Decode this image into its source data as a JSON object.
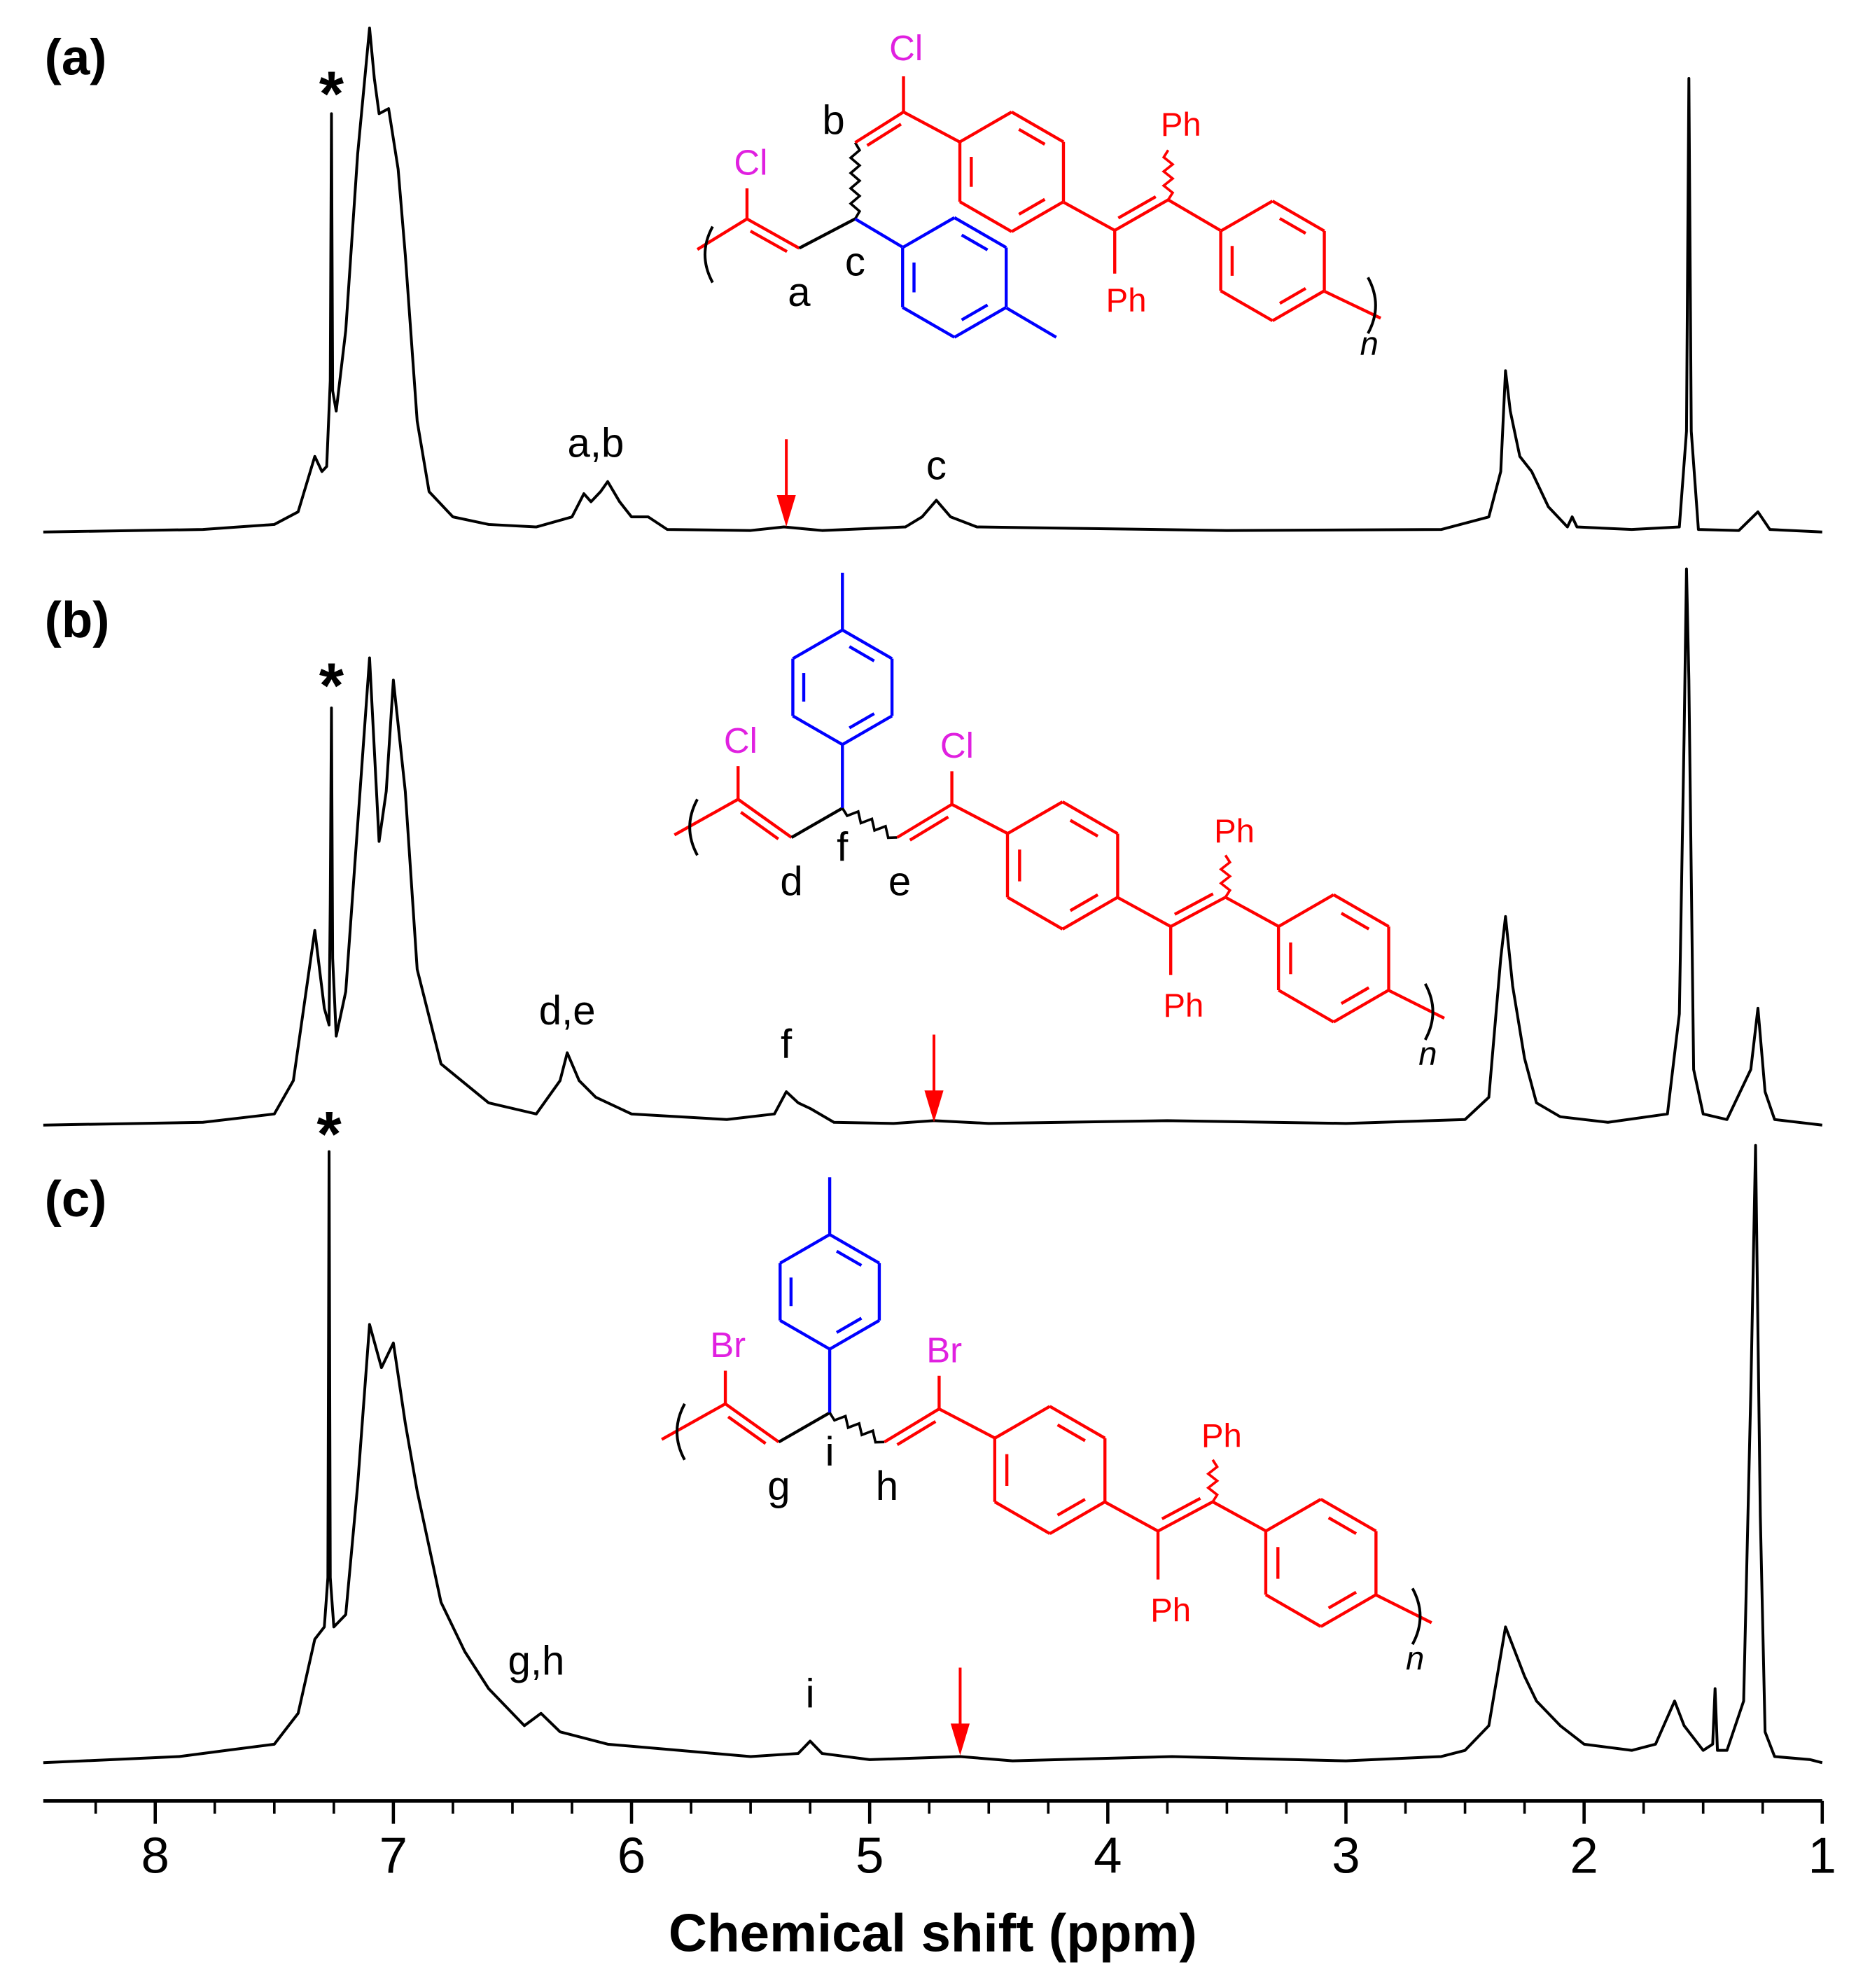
{
  "chart_data": [
    {
      "type": "line",
      "panel_label": "(a)",
      "color": "#000000",
      "xlim": [
        8.47,
        1
      ],
      "ylim": [
        0,
        100
      ],
      "x": [
        8.47,
        7.8,
        7.65,
        7.5,
        7.4,
        7.33,
        7.3,
        7.28,
        7.265,
        7.26,
        7.255,
        7.24,
        7.2,
        7.15,
        7.1,
        7.08,
        7.06,
        7.02,
        6.98,
        6.95,
        6.9,
        6.85,
        6.75,
        6.6,
        6.4,
        6.25,
        6.2,
        6.17,
        6.13,
        6.1,
        6.05,
        6.0,
        5.93,
        5.85,
        5.5,
        5.36,
        5.2,
        4.85,
        4.78,
        4.72,
        4.66,
        4.55,
        3.5,
        2.6,
        2.4,
        2.35,
        2.33,
        2.31,
        2.27,
        2.22,
        2.15,
        2.07,
        2.05,
        2.03,
        1.8,
        1.6,
        1.57,
        1.56,
        1.55,
        1.52,
        1.35,
        1.27,
        1.22,
        1.0
      ],
      "values": [
        0,
        0.5,
        1,
        1.5,
        4,
        15,
        12,
        13,
        30,
        83,
        28,
        24,
        40,
        75,
        100,
        90,
        83,
        84,
        72,
        55,
        22,
        8,
        3,
        1.5,
        1,
        3,
        7.6,
        6,
        8,
        10,
        6,
        3,
        3,
        0.5,
        0.3,
        1,
        0.3,
        1,
        3,
        6.3,
        3,
        1,
        0.3,
        0.5,
        3,
        12,
        32,
        24,
        15,
        12,
        5,
        1,
        3,
        1,
        0.5,
        1,
        20,
        90,
        20,
        0.5,
        0.3,
        4,
        0.5,
        0
      ],
      "annotations": [
        {
          "text": "*",
          "x": 7.26,
          "y": 88
        },
        {
          "text": "a,b",
          "x": 6.15,
          "y": 17
        },
        {
          "text": "c",
          "x": 4.72,
          "y": 12.6
        }
      ],
      "arrows": [
        {
          "x": 5.35,
          "y": 2
        }
      ],
      "structure_labels": [
        "Cl",
        "Cl",
        "Ph",
        "Ph",
        "a",
        "b",
        "c",
        "n"
      ]
    },
    {
      "type": "line",
      "panel_label": "(b)",
      "color": "#000000",
      "xlim": [
        8.47,
        1
      ],
      "ylim": [
        0,
        100
      ],
      "x": [
        8.47,
        7.8,
        7.6,
        7.5,
        7.42,
        7.38,
        7.33,
        7.29,
        7.27,
        7.265,
        7.26,
        7.255,
        7.24,
        7.2,
        7.15,
        7.1,
        7.06,
        7.03,
        7.0,
        6.95,
        6.9,
        6.8,
        6.6,
        6.4,
        6.3,
        6.27,
        6.22,
        6.15,
        6.0,
        5.6,
        5.4,
        5.35,
        5.3,
        5.25,
        5.15,
        4.9,
        4.73,
        4.5,
        3.75,
        3.0,
        2.5,
        2.4,
        2.35,
        2.33,
        2.3,
        2.25,
        2.2,
        2.1,
        1.9,
        1.65,
        1.6,
        1.58,
        1.57,
        1.56,
        1.54,
        1.5,
        1.4,
        1.3,
        1.27,
        1.24,
        1.2,
        1.0
      ],
      "values": [
        0,
        0.5,
        1.5,
        2,
        8,
        20,
        35,
        21,
        18,
        40,
        75,
        30,
        16,
        24,
        54,
        84,
        51,
        60,
        80,
        60,
        28,
        11,
        4,
        2,
        8,
        13,
        8,
        5,
        2,
        1,
        2,
        6,
        4,
        3,
        0.5,
        0.3,
        0.8,
        0.3,
        0.8,
        0.3,
        1,
        5,
        30,
        37.5,
        25,
        12,
        4,
        1.5,
        0.5,
        2,
        20,
        70,
        100,
        80,
        10,
        2,
        1,
        10,
        21,
        6,
        1,
        0
      ],
      "annotations": [
        {
          "text": "*",
          "x": 7.26,
          "y": 80
        },
        {
          "text": "d,e",
          "x": 6.27,
          "y": 20
        },
        {
          "text": "f",
          "x": 5.35,
          "y": 14
        }
      ],
      "arrows": [
        {
          "x": 4.73,
          "y": 1.4
        }
      ],
      "structure_labels": [
        "Cl",
        "Cl",
        "Ph",
        "Ph",
        "d",
        "f",
        "e",
        "n"
      ]
    },
    {
      "type": "line",
      "panel_label": "(c)",
      "color": "#000000",
      "xlim": [
        8.47,
        1
      ],
      "ylim": [
        0,
        100
      ],
      "x": [
        8.47,
        7.9,
        7.7,
        7.5,
        7.4,
        7.33,
        7.29,
        7.275,
        7.27,
        7.265,
        7.25,
        7.2,
        7.15,
        7.1,
        7.05,
        7.0,
        6.95,
        6.9,
        6.8,
        6.7,
        6.6,
        6.45,
        6.38,
        6.3,
        6.1,
        5.8,
        5.5,
        5.3,
        5.25,
        5.2,
        5.0,
        4.62,
        4.4,
        3.73,
        3.0,
        2.6,
        2.5,
        2.4,
        2.33,
        2.25,
        2.2,
        2.1,
        2.0,
        1.8,
        1.7,
        1.62,
        1.58,
        1.5,
        1.46,
        1.45,
        1.44,
        1.4,
        1.33,
        1.3,
        1.28,
        1.26,
        1.24,
        1.2,
        1.05,
        1.0
      ],
      "values": [
        0,
        1,
        2,
        3,
        8,
        20,
        22,
        30,
        99,
        30,
        22,
        24,
        45,
        71,
        64,
        68,
        55,
        44,
        26,
        18,
        12,
        6,
        8,
        5,
        3,
        2,
        1,
        1.5,
        3.5,
        1.5,
        0.5,
        1,
        0.3,
        1,
        0.3,
        1,
        2,
        6,
        22,
        14,
        10,
        6,
        3,
        2,
        3,
        10,
        6,
        2,
        3,
        12,
        2,
        2,
        10,
        60,
        100,
        40,
        5,
        1,
        0.5,
        0
      ],
      "annotations": [
        {
          "text": "*",
          "x": 7.27,
          "y": 102.7
        },
        {
          "text": "g,h",
          "x": 6.4,
          "y": 16
        },
        {
          "text": "i",
          "x": 5.25,
          "y": 10.7
        }
      ],
      "arrows": [
        {
          "x": 4.62,
          "y": 2
        }
      ],
      "structure_labels": [
        "Br",
        "Br",
        "Ph",
        "Ph",
        "g",
        "i",
        "h",
        "n"
      ],
      "xlabel": "Chemical shift (ppm)",
      "xticks": [
        8,
        7,
        6,
        5,
        4,
        3,
        2,
        1
      ],
      "xminor_ticks": [
        8.25,
        7.75,
        7.5,
        7.25,
        6.75,
        6.5,
        6.25,
        5.75,
        5.5,
        5.25,
        4.75,
        4.5,
        4.25,
        3.75,
        3.5,
        3.25,
        2.75,
        2.5,
        2.25,
        1.75,
        1.5,
        1.25
      ]
    }
  ]
}
